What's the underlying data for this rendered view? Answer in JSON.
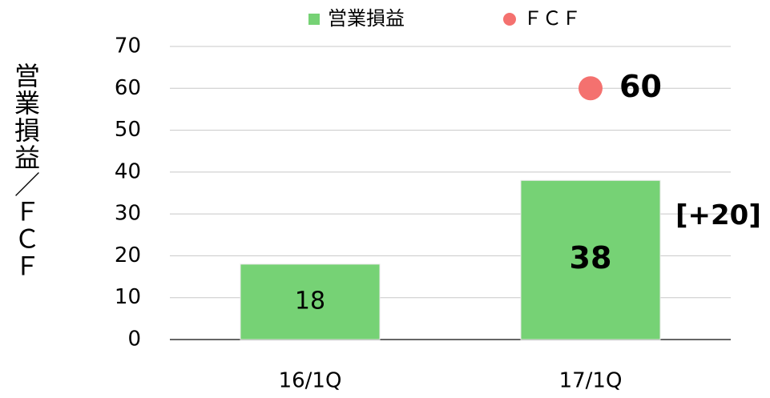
{
  "chart_data": {
    "type": "bar",
    "categories": [
      "16/1Q",
      "17/1Q"
    ],
    "series": [
      {
        "name": "営業損益",
        "type": "bar",
        "color": "#76d275",
        "values": [
          18,
          38
        ]
      },
      {
        "name": "ＦＣＦ",
        "type": "scatter",
        "color": "#f4716f",
        "values": [
          null,
          60
        ]
      }
    ],
    "y_label": "営業損益／ＦＣＦ",
    "annotation": "[+20]",
    "ylim": [
      0,
      70
    ],
    "yticks": [
      0,
      10,
      20,
      30,
      40,
      50,
      60,
      70
    ],
    "grid": true,
    "legend": "top"
  }
}
